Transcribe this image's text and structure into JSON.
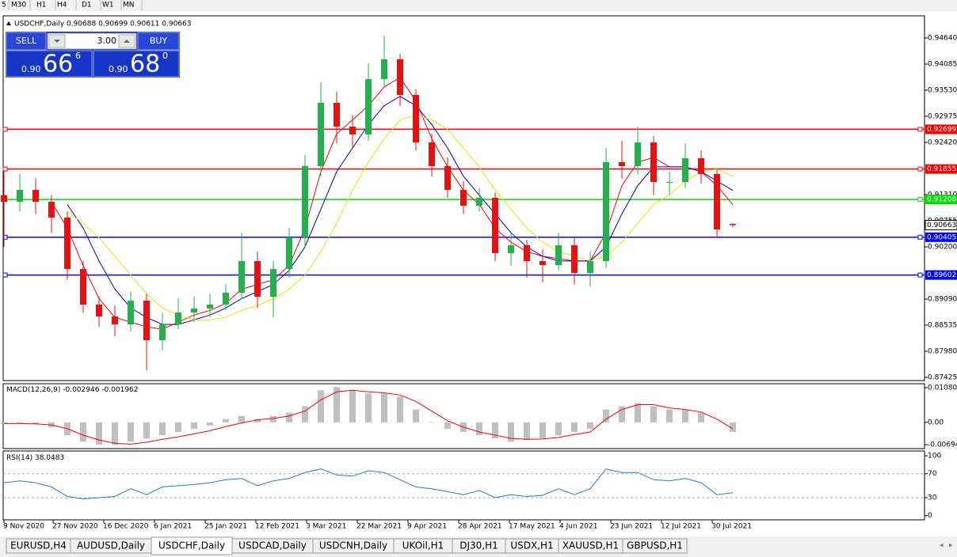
{
  "toolbar": {
    "timeframes": [
      "5",
      "M30",
      "H1",
      "H4",
      "D1",
      "W1",
      "MN"
    ]
  },
  "trade_panel": {
    "sell": "SELL",
    "lot": "3.00",
    "buy": "BUY",
    "bid_prefix": "0.90",
    "bid_big": "66",
    "bid_small": "6",
    "ask_prefix": "0.90",
    "ask_big": "68",
    "ask_small": "0"
  },
  "chart_data": [
    {
      "type": "candlestick",
      "title": "USDCHF,Daily",
      "x": [
        0,
        1,
        2,
        3,
        4,
        5,
        6,
        7,
        8,
        9,
        10,
        11,
        12,
        13,
        14,
        15,
        16,
        17,
        18,
        19,
        20,
        21,
        22,
        23,
        24,
        25,
        26,
        27,
        28,
        29,
        30,
        31,
        32,
        33,
        34,
        35,
        36,
        37,
        38,
        39,
        40,
        41,
        42,
        43,
        44,
        45,
        46
      ],
      "xlim": [
        -0.05,
        58.1
      ],
      "xticks": [
        {
          "value": 0,
          "label": "9 Nov 2020"
        },
        {
          "value": 3.1,
          "label": "27 Nov 2020"
        },
        {
          "value": 6.3,
          "label": "16 Dec 2020"
        },
        {
          "value": 9.5,
          "label": "6 Jan 2021"
        },
        {
          "value": 12.7,
          "label": "25 Jan 2021"
        },
        {
          "value": 15.9,
          "label": "12 Feb 2021"
        },
        {
          "value": 19.1,
          "label": "3 Mar 2021"
        },
        {
          "value": 22.3,
          "label": "22 Mar 2021"
        },
        {
          "value": 25.5,
          "label": "9 Apr 2021"
        },
        {
          "value": 28.7,
          "label": "28 Apr 2021"
        },
        {
          "value": 31.9,
          "label": "17 May 2021"
        },
        {
          "value": 35.1,
          "label": "4 Jun 2021"
        },
        {
          "value": 38.3,
          "label": "23 Jun 2021"
        },
        {
          "value": 41.5,
          "label": "12 Jul 2021"
        },
        {
          "value": 44.7,
          "label": "30 Jul 2021"
        }
      ],
      "ylim": [
        0.87358,
        0.95111
      ],
      "yticks": [
        {
          "value": 0.9464,
          "label": "0.94640"
        },
        0.94085,
        {
          "value": 0.9353,
          "label": "0.93530"
        },
        0.92975,
        {
          "value": 0.9242,
          "label": "0.92420"
        },
        {
          "value": 0.9131,
          "label": "0.91310"
        },
        0.90755,
        {
          "value": 0.902,
          "label": "0.90200"
        },
        {
          "value": 0.8909,
          "label": "0.89090"
        },
        0.88535,
        {
          "value": 0.8798,
          "label": "0.87980"
        },
        0.87425
      ],
      "open": [
        0.913,
        0.91159,
        0.91411,
        0.91159,
        0.90822,
        0.89729,
        0.88973,
        0.8872,
        0.88552,
        0.89057,
        0.88216,
        0.88552,
        0.88804,
        0.88889,
        0.88973,
        0.89225,
        0.89897,
        0.89141,
        0.89729,
        0.90402,
        0.91916,
        0.93261,
        0.92756,
        0.92588,
        0.93765,
        0.94186,
        0.93429,
        0.9242,
        0.91916,
        0.91411,
        0.91075,
        0.91243,
        0.90066,
        0.90234,
        0.89897,
        0.89813,
        0.90234,
        0.89645,
        0.89897,
        0.92,
        0.91916,
        0.9242,
        0.91579,
        0.91579,
        0.92084,
        0.91747,
        0.90688
      ],
      "high": [
        0.9182,
        0.9175,
        0.9165,
        0.913,
        0.9095,
        0.899,
        0.8915,
        0.8895,
        0.8925,
        0.892,
        0.888,
        0.891,
        0.8915,
        0.892,
        0.894,
        0.905,
        0.901,
        0.899,
        0.906,
        0.9215,
        0.937,
        0.935,
        0.93,
        0.941,
        0.9469,
        0.943,
        0.9355,
        0.926,
        0.921,
        0.916,
        0.9145,
        0.9135,
        0.905,
        0.9035,
        0.9015,
        0.905,
        0.904,
        0.901,
        0.923,
        0.9245,
        0.9275,
        0.9255,
        0.918,
        0.924,
        0.9225,
        0.9185,
        0.90699
      ],
      "low": [
        0.902,
        0.9095,
        0.909,
        0.905,
        0.895,
        0.888,
        0.885,
        0.883,
        0.884,
        0.87577,
        0.88,
        0.8845,
        0.886,
        0.887,
        0.8885,
        0.891,
        0.889,
        0.887,
        0.8955,
        0.902,
        0.917,
        0.924,
        0.923,
        0.9245,
        0.936,
        0.932,
        0.9225,
        0.917,
        0.9125,
        0.909,
        0.9095,
        0.899,
        0.898,
        0.8955,
        0.8945,
        0.897,
        0.894,
        0.8935,
        0.8975,
        0.9165,
        0.9175,
        0.913,
        0.913,
        0.9145,
        0.9155,
        0.904,
        0.90611
      ],
      "close": [
        0.91159,
        0.91411,
        0.91159,
        0.90822,
        0.89729,
        0.88973,
        0.8872,
        0.88552,
        0.89057,
        0.88216,
        0.88552,
        0.88804,
        0.88889,
        0.88973,
        0.89225,
        0.89897,
        0.89141,
        0.89729,
        0.90402,
        0.91916,
        0.93261,
        0.92756,
        0.92588,
        0.93765,
        0.94186,
        0.93429,
        0.9242,
        0.91916,
        0.91411,
        0.91075,
        0.91243,
        0.90066,
        0.90234,
        0.89897,
        0.89813,
        0.90234,
        0.89645,
        0.89897,
        0.92,
        0.91916,
        0.9242,
        0.91579,
        0.91579,
        0.92084,
        0.91747,
        0.9057,
        0.90663
      ],
      "up_color": "#22b14c",
      "down_color": "#e81010",
      "overlays": [
        {
          "color": "#ff0000",
          "values": [
            null,
            null,
            null,
            0.9115,
            0.906,
            0.898,
            0.891,
            0.887,
            0.886,
            0.885,
            0.8845,
            0.886,
            0.8875,
            0.8885,
            0.89,
            0.893,
            0.894,
            0.895,
            0.898,
            0.906,
            0.918,
            0.926,
            0.929,
            0.932,
            0.936,
            0.938,
            0.933,
            0.925,
            0.919,
            0.914,
            0.911,
            0.906,
            0.903,
            0.901,
            0.9,
            0.8995,
            0.899,
            0.899,
            0.905,
            0.915,
            0.92,
            0.921,
            0.919,
            0.919,
            0.918,
            0.915,
            0.911
          ]
        },
        {
          "color": "#0000cc",
          "values": [
            null,
            null,
            null,
            null,
            0.911,
            0.906,
            0.899,
            0.893,
            0.889,
            0.887,
            0.8855,
            0.8855,
            0.8865,
            0.8875,
            0.889,
            0.891,
            0.8925,
            0.894,
            0.897,
            0.902,
            0.91,
            0.918,
            0.923,
            0.928,
            0.932,
            0.934,
            0.932,
            0.928,
            0.923,
            0.917,
            0.913,
            0.909,
            0.905,
            0.902,
            0.9,
            0.899,
            0.899,
            0.899,
            0.902,
            0.909,
            0.915,
            0.919,
            0.919,
            0.919,
            0.918,
            0.916,
            0.914
          ]
        },
        {
          "color": "#f5e000",
          "values": [
            null,
            null,
            null,
            null,
            0.9095,
            0.907,
            0.904,
            0.9,
            0.896,
            0.892,
            0.889,
            0.8875,
            0.8865,
            0.8865,
            0.887,
            0.8885,
            0.8895,
            0.891,
            0.893,
            0.896,
            0.901,
            0.907,
            0.914,
            0.92,
            0.925,
            0.929,
            0.93,
            0.929,
            0.927,
            0.923,
            0.919,
            0.914,
            0.91,
            0.906,
            0.903,
            0.901,
            0.9,
            0.899,
            0.9,
            0.903,
            0.907,
            0.911,
            0.913,
            0.916,
            0.918,
            0.9185,
            0.917
          ]
        }
      ],
      "hlines": [
        {
          "value": 0.92699,
          "color": "#ff0000"
        },
        {
          "value": 0.91855,
          "color": "#ff0000"
        },
        {
          "value": 0.91208,
          "color": "#00e000"
        },
        {
          "value": 0.90405,
          "color": "#0000ff"
        },
        {
          "value": 0.89602,
          "color": "#0000ff"
        }
      ]
    },
    {
      "type": "macd",
      "title": "MACD(12,26,9)",
      "ylim": [
        -0.00818,
        0.01203
      ],
      "yticks": [
        0.010805,
        {
          "value": 0,
          "label": "0.00"
        },
        -0.006948
      ],
      "histogram": {
        "color": "#c0c0c0",
        "values": [
          -0.0005,
          -0.0003,
          -0.0006,
          -0.0015,
          -0.004,
          -0.006,
          -0.007,
          -0.007,
          -0.006,
          -0.005,
          -0.004,
          -0.003,
          -0.002,
          -0.001,
          0.001,
          0.002,
          0.001,
          0.002,
          0.003,
          0.005,
          0.01,
          0.011,
          0.01,
          0.009,
          0.009,
          0.008,
          0.004,
          0.0,
          -0.002,
          -0.003,
          -0.004,
          -0.005,
          -0.006,
          -0.0055,
          -0.005,
          -0.004,
          -0.003,
          -0.002,
          0.004,
          0.005,
          0.006,
          0.005,
          0.004,
          0.004,
          0.003,
          0.0,
          -0.002946
        ]
      },
      "signal": {
        "color": "#ff0000",
        "values": [
          -0.0004,
          -0.0004,
          -0.0005,
          -0.0008,
          -0.002,
          -0.004,
          -0.0055,
          -0.0065,
          -0.0068,
          -0.0062,
          -0.0053,
          -0.0045,
          -0.0036,
          -0.0026,
          -0.0013,
          -0.0002,
          0.0008,
          0.0012,
          0.002,
          0.0035,
          0.007,
          0.0095,
          0.01,
          0.0095,
          0.0092,
          0.0085,
          0.0065,
          0.0035,
          0.0005,
          -0.0015,
          -0.003,
          -0.004,
          -0.005,
          -0.0053,
          -0.0052,
          -0.0047,
          -0.0038,
          -0.003,
          0.001,
          0.004,
          0.0055,
          0.0055,
          0.0045,
          0.004,
          0.0032,
          0.001,
          -0.001962
        ]
      }
    },
    {
      "type": "line",
      "title": "RSI(14)",
      "ylim": [
        -7,
        108
      ],
      "yticks": [
        100,
        70,
        30,
        0
      ],
      "levels": [
        70,
        30
      ],
      "color": "#1e7fd8",
      "values": [
        55,
        58,
        55,
        48,
        32,
        28,
        30,
        32,
        45,
        35,
        48,
        50,
        52,
        55,
        60,
        62,
        50,
        58,
        62,
        72,
        78,
        68,
        66,
        75,
        72,
        60,
        48,
        45,
        40,
        35,
        42,
        30,
        35,
        32,
        34,
        45,
        35,
        45,
        78,
        72,
        72,
        60,
        58,
        62,
        55,
        35,
        38.0483
      ]
    }
  ],
  "tabs": {
    "items": [
      "EURUSD,H4",
      "AUDUSD,Daily",
      "USDCHF,Daily",
      "USDCAD,Daily",
      "USDCNH,Daily",
      "UKOil,H1",
      "DJ30,H1",
      "USDX,H1",
      "XAUUSD,H1",
      "GBPUSD,H1"
    ],
    "active": 2
  }
}
